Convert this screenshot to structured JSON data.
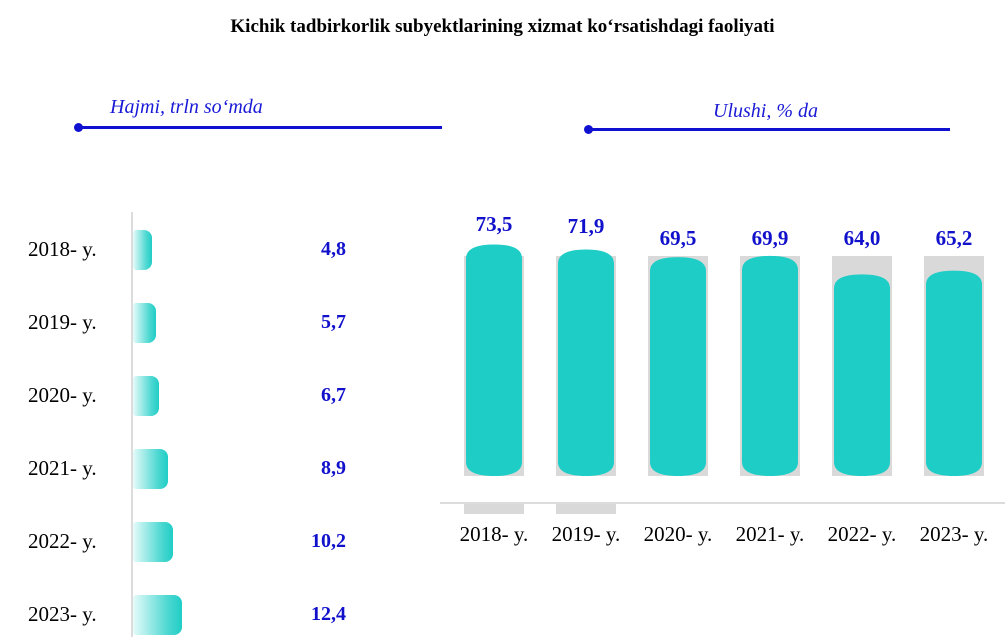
{
  "title": "Kichik tadbirkorlik subyektlarining xizmat ko‘rsatishdagi faoliyati",
  "left_subtitle": "Hajmi, trln so‘mda",
  "right_subtitle": "Ulushi, % da",
  "colors": {
    "accent": "#1010d0",
    "bar": "#1ecdc6",
    "bar_bg": "#d9d9d9",
    "value_text": "#1111cc"
  },
  "chart_data": [
    {
      "type": "bar",
      "orientation": "horizontal",
      "categories": [
        "2018- y.",
        "2019- y.",
        "2020- y.",
        "2021- y.",
        "2022- y.",
        "2023- y."
      ],
      "values": [
        4.8,
        5.7,
        6.7,
        8.9,
        10.2,
        12.4
      ],
      "value_labels": [
        "4,8",
        "5,7",
        "6,7",
        "8,9",
        "10,2",
        "12,4"
      ],
      "ylabel": "Hajmi, trln so‘mda"
    },
    {
      "type": "bar",
      "orientation": "vertical",
      "categories": [
        "2018- y.",
        "2019- y.",
        "2020- y.",
        "2021- y.",
        "2022- y.",
        "2023- y."
      ],
      "values": [
        73.5,
        71.9,
        69.5,
        69.9,
        64.0,
        65.2
      ],
      "value_labels": [
        "73,5",
        "71,9",
        "69,5",
        "69,9",
        "64,0",
        "65,2"
      ],
      "ylabel": "Ulushi, % da",
      "ylim": [
        0,
        100
      ]
    }
  ]
}
